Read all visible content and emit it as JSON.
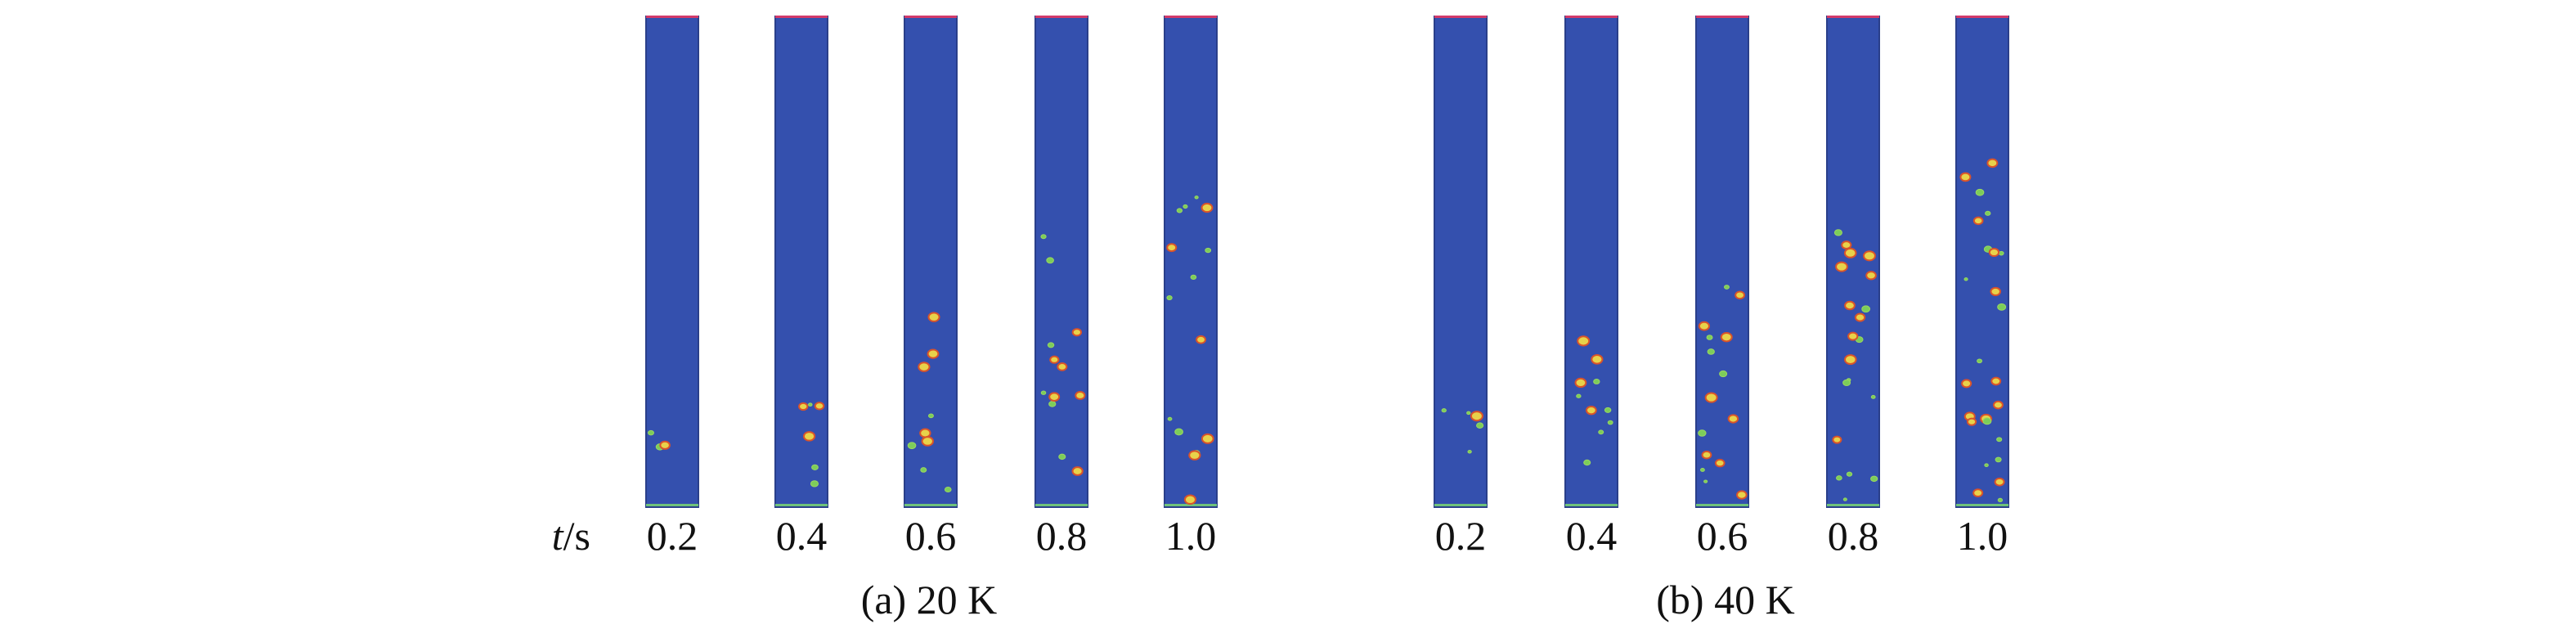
{
  "axis_symbol": "t",
  "axis_unit": "/s",
  "panels": [
    {
      "caption": "(a) 20 K",
      "times": [
        "0.2",
        "0.4",
        "0.6",
        "0.8",
        "1.0"
      ]
    },
    {
      "caption": "(b) 40 K",
      "times": [
        "0.2",
        "0.4",
        "0.6",
        "0.8",
        "1.0"
      ]
    }
  ]
}
